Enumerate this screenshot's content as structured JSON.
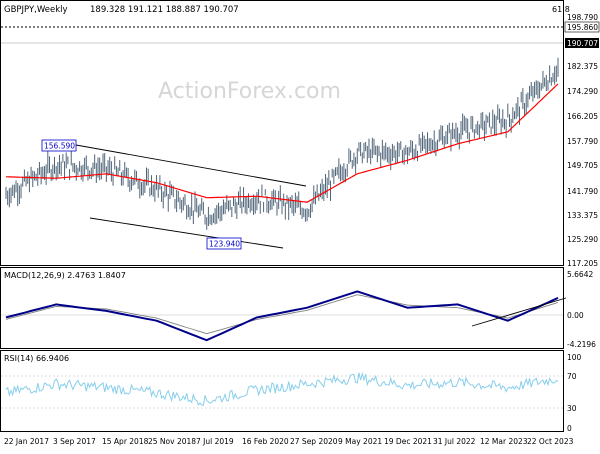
{
  "header": {
    "symbol": "GBPJPY,Weekly",
    "ohlc": "189.328 191.121 188.887 190.707",
    "fib_label": "61.8",
    "watermark": "ActionForex.com"
  },
  "colors": {
    "background": "#ffffff",
    "border": "#000000",
    "bars": "#4f6478",
    "ma_line": "#ff0000",
    "macd_line": "#00008b",
    "signal_line": "#808080",
    "rsi_line": "#87ceeb",
    "label_box": "#0000cd",
    "watermark": "#d6d6d6"
  },
  "price_panel": {
    "y_ticks": [
      "198.790",
      "195.860",
      "190.707",
      "182.375",
      "174.290",
      "166.205",
      "157.790",
      "149.705",
      "141.790",
      "133.375",
      "125.290",
      "117.205"
    ],
    "current_price_label": "190.707",
    "fib_level_label": "195.860",
    "high_label": "156.590",
    "low_label": "123.940"
  },
  "macd_panel": {
    "title": "MACD(12,26,9) 2.4763 1.8407",
    "y_ticks": [
      "5.6642",
      "0.00",
      "-4.2196"
    ]
  },
  "rsi_panel": {
    "title": "RSI(14) 66.9406",
    "y_ticks": [
      "100",
      "70",
      "30",
      "0"
    ]
  },
  "x_axis": {
    "labels": [
      "22 Jan 2017",
      "3 Sep 2017",
      "15 Apr 2018",
      "25 Nov 2018",
      "7 Jul 2019",
      "16 Feb 2020",
      "27 Sep 2020",
      "9 May 2021",
      "19 Dec 2021",
      "31 Jul 2022",
      "12 Mar 2023",
      "22 Oct 2023"
    ]
  },
  "chart_data": [
    {
      "type": "line",
      "title": "GBPJPY,Weekly",
      "x": [
        "22 Jan 2017",
        "3 Sep 2017",
        "15 Apr 2018",
        "25 Nov 2018",
        "7 Jul 2019",
        "16 Feb 2020",
        "27 Sep 2020",
        "9 May 2021",
        "19 Dec 2021",
        "31 Jul 2022",
        "12 Mar 2023",
        "22 Oct 2023"
      ],
      "series": [
        {
          "values": [
            141.0,
            151.0,
            149.5,
            143.0,
            134.0,
            140.0,
            136.0,
            155.0,
            155.0,
            162.0,
            166.0,
            183.0
          ]
        },
        {
          "values": [
            147.0,
            146.5,
            148.0,
            145.0,
            140.0,
            140.5,
            138.5,
            148.0,
            152.5,
            158.0,
            162.0,
            178.0
          ]
        }
      ],
      "ylim": [
        117.205,
        201.0
      ],
      "annotations": [
        "156.590",
        "123.940",
        "195.860",
        "190.707"
      ]
    },
    {
      "type": "line",
      "title": "MACD(12,26,9) 2.4763 1.8407",
      "x": [
        "22 Jan 2017",
        "3 Sep 2017",
        "15 Apr 2018",
        "25 Nov 2018",
        "7 Jul 2019",
        "16 Feb 2020",
        "27 Sep 2020",
        "9 May 2021",
        "19 Dec 2021",
        "31 Jul 2022",
        "12 Mar 2023",
        "22 Oct 2023"
      ],
      "series": [
        {
          "values": [
            -0.5,
            1.5,
            0.5,
            -1.0,
            -4.0,
            -0.5,
            1.0,
            3.5,
            1.0,
            1.5,
            -1.0,
            2.5
          ]
        },
        {
          "values": [
            -0.8,
            1.2,
            0.8,
            -0.6,
            -3.0,
            -0.8,
            0.6,
            3.0,
            1.4,
            1.0,
            -0.6,
            1.8
          ]
        }
      ],
      "ylim": [
        -5.2,
        6.8
      ]
    },
    {
      "type": "line",
      "title": "RSI(14) 66.9406",
      "x": [
        "22 Jan 2017",
        "3 Sep 2017",
        "15 Apr 2018",
        "25 Nov 2018",
        "7 Jul 2019",
        "16 Feb 2020",
        "27 Sep 2020",
        "9 May 2021",
        "19 Dec 2021",
        "31 Jul 2022",
        "12 Mar 2023",
        "22 Oct 2023"
      ],
      "series": [
        {
          "values": [
            48,
            60,
            55,
            48,
            38,
            52,
            60,
            68,
            58,
            62,
            55,
            67
          ]
        }
      ],
      "ylim": [
        0,
        100
      ]
    }
  ]
}
